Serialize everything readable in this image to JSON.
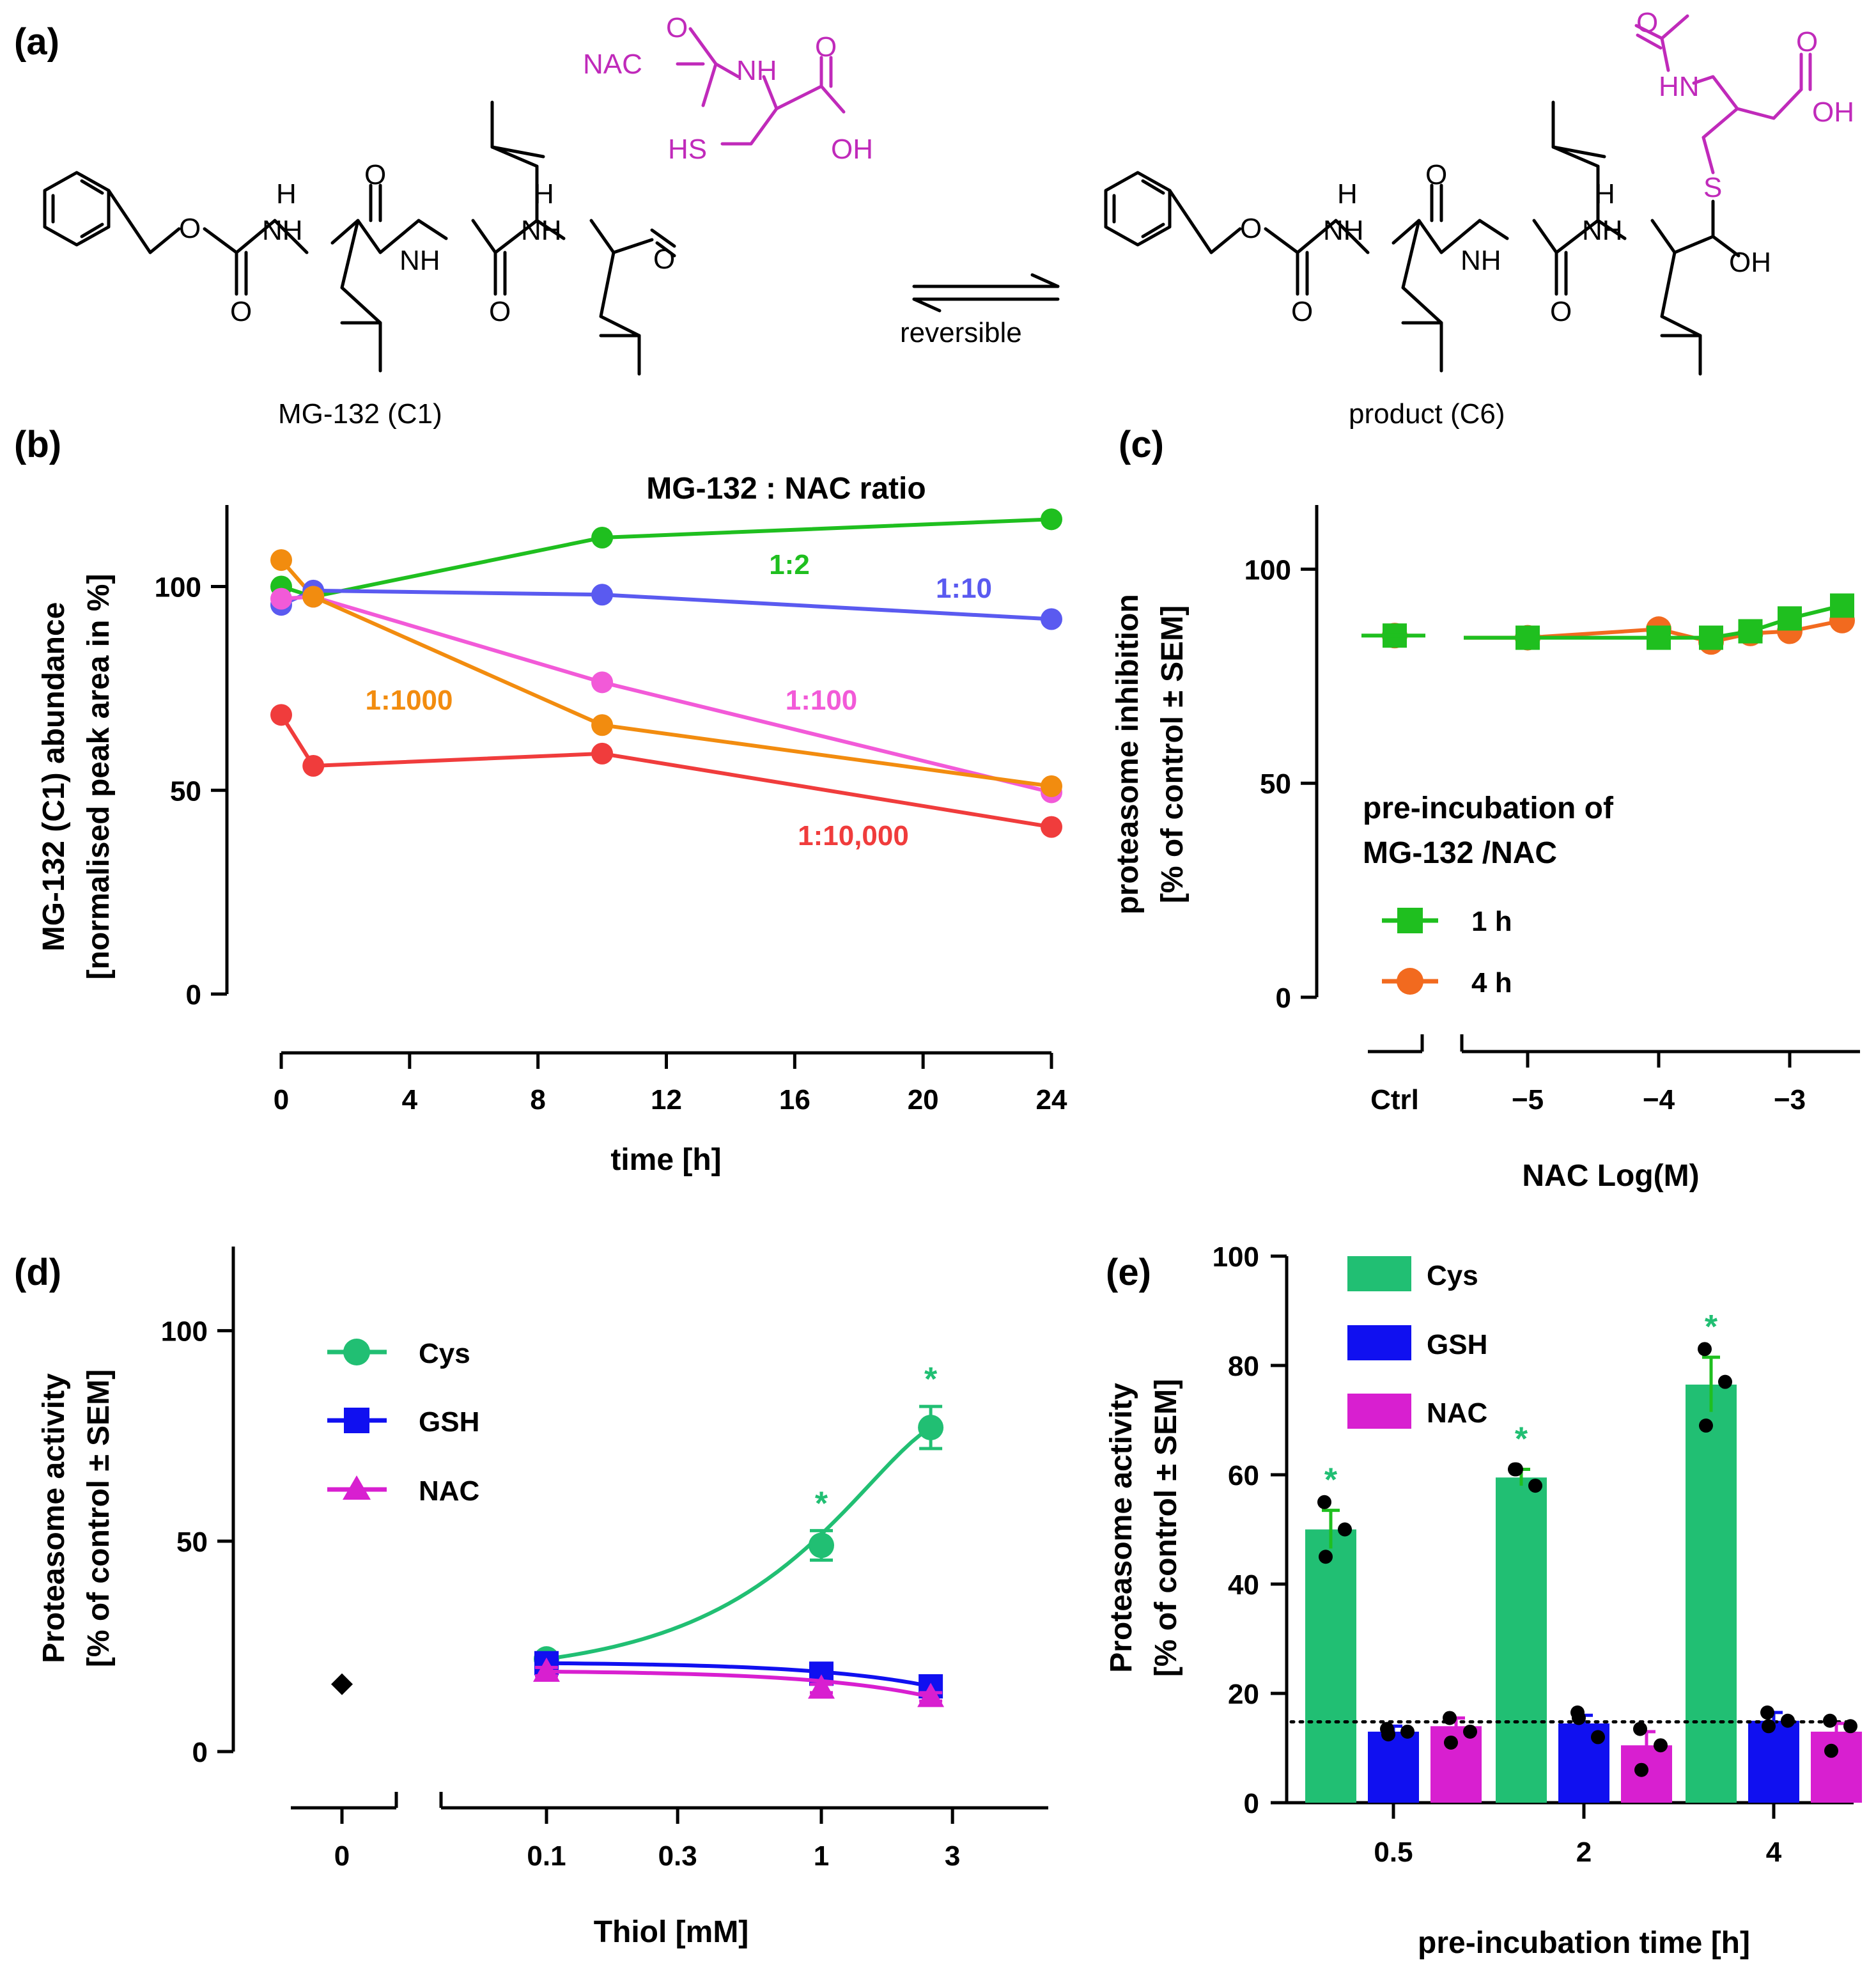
{
  "panels": {
    "a": "(a)",
    "b": "(b)",
    "c": "(c)",
    "d": "(d)",
    "e": "(e)"
  },
  "scheme": {
    "reactant_label": "MG-132 (C1)",
    "product_label": "product (C6)",
    "reagent_label": "NAC",
    "arrow_label": "reversible",
    "atoms": {
      "O": "O",
      "H": "H",
      "NH": "NH",
      "HN": "HN",
      "OH": "OH",
      "HS": "HS",
      "S": "S"
    }
  },
  "colors": {
    "green": "#1fbf1f",
    "blue": "#5a5af0",
    "orange": "#f28c0f",
    "pink": "#f25ad8",
    "red": "#f03c3c",
    "orange4h": "#f26a1f",
    "teal": "#21bf73",
    "navy": "#1010f0",
    "magenta": "#d81fd0",
    "chem_magenta": "#c02aba"
  },
  "chart_data": [
    {
      "panel": "b",
      "type": "line",
      "title": "MG-132 : NAC ratio",
      "xlabel": "time [h]",
      "ylabel": [
        "MG-132 (C1) abundance",
        "[normalised peak area in %]"
      ],
      "xlim": [
        0,
        24
      ],
      "ylim": [
        0,
        120
      ],
      "xticks": [
        0,
        4,
        8,
        12,
        16,
        20,
        24
      ],
      "yticks": [
        0,
        50,
        100
      ],
      "x": [
        0,
        1,
        10,
        24
      ],
      "series": [
        {
          "name": "1:2",
          "color": "#1fbf1f",
          "values": [
            100,
            97.5,
            112,
            116.5
          ]
        },
        {
          "name": "1:10",
          "color": "#5a5af0",
          "values": [
            95.5,
            99,
            98,
            92
          ]
        },
        {
          "name": "1:100",
          "color": "#f25ad8",
          "values": [
            97,
            97.5,
            76.5,
            49.5
          ]
        },
        {
          "name": "1:1000",
          "color": "#f28c0f",
          "values": [
            106.5,
            97.5,
            66,
            51
          ]
        },
        {
          "name": "1:10,000",
          "color": "#f03c3c",
          "values": [
            68.5,
            56,
            59,
            41
          ]
        }
      ]
    },
    {
      "panel": "c",
      "type": "line",
      "xlabel": "NAC Log(M)",
      "ylabel": [
        "proteasome inhibition",
        "[% of control ± SEM]"
      ],
      "ylim": [
        0,
        115
      ],
      "yticks": [
        0,
        50,
        100
      ],
      "xticks": [
        -5,
        -4,
        -3
      ],
      "xtick_labels": [
        "−5",
        "−4",
        "−3"
      ],
      "ctrl_label": "Ctrl",
      "legend_title": [
        "pre-incubation of",
        "MG-132 /NAC"
      ],
      "control": {
        "1 h": 84.5,
        "4 h": 84.5
      },
      "series": [
        {
          "name": "1 h",
          "color": "#1fbf1f",
          "marker": "square",
          "x": [
            -5,
            -4,
            -3.6,
            -3.3,
            -3,
            -2.6
          ],
          "values": [
            84,
            84,
            84,
            85.5,
            88.5,
            91.5
          ]
        },
        {
          "name": "4 h",
          "color": "#f26a1f",
          "marker": "circle",
          "x": [
            -5,
            -4,
            -3.6,
            -3.3,
            -3,
            -2.6
          ],
          "values": [
            84,
            86,
            83,
            85,
            85.5,
            88
          ]
        }
      ]
    },
    {
      "panel": "d",
      "type": "line",
      "xlabel": "Thiol [mM]",
      "ylabel": [
        "Proteasome activity",
        "[% of control ± SEM]"
      ],
      "ylim": [
        0,
        120
      ],
      "yticks": [
        0,
        50,
        100
      ],
      "xticks": [
        0.1,
        0.3,
        1,
        3
      ],
      "xtick_labels": [
        "0.1",
        "0.3",
        "1",
        "3"
      ],
      "zero_label": "0",
      "zero_value": 16,
      "significance": "*",
      "series": [
        {
          "name": "Cys",
          "color": "#21bf73",
          "marker": "circle",
          "x": [
            0.1,
            1,
            2.5
          ],
          "values": [
            22,
            49,
            77
          ],
          "err": [
            1,
            3.5,
            5
          ]
        },
        {
          "name": "GSH",
          "color": "#1010f0",
          "marker": "square",
          "x": [
            0.1,
            1,
            2.5
          ],
          "values": [
            21,
            18.5,
            15.5
          ],
          "err": [
            1,
            1,
            1
          ]
        },
        {
          "name": "NAC",
          "color": "#d81fd0",
          "marker": "triangle",
          "x": [
            0.1,
            1,
            2.5
          ],
          "values": [
            19,
            15,
            13
          ],
          "err": [
            1,
            1,
            1
          ]
        }
      ],
      "significant_points": [
        1,
        2.5
      ]
    },
    {
      "panel": "e",
      "type": "bar",
      "xlabel": "pre-incubation time [h]",
      "ylabel": [
        "Proteasome activity",
        "[% of control ± SEM]"
      ],
      "ylim": [
        0,
        100
      ],
      "yticks": [
        0,
        20,
        40,
        60,
        80,
        100
      ],
      "categories": [
        "0.5",
        "2",
        "4"
      ],
      "baseline": 14.8,
      "significance": "*",
      "series": [
        {
          "name": "Cys",
          "color": "#21bf73",
          "values": [
            50,
            59.5,
            76.5
          ],
          "err": [
            3.5,
            1.5,
            5
          ],
          "points": [
            [
              55,
              50,
              45
            ],
            [
              61,
              58,
              61
            ],
            [
              83,
              77,
              69
            ]
          ]
        },
        {
          "name": "GSH",
          "color": "#1010f0",
          "values": [
            13,
            14.5,
            15
          ],
          "err": [
            1,
            1.5,
            1.5
          ],
          "points": [
            [
              13.5,
              13,
              12.5
            ],
            [
              16.5,
              12,
              15.5
            ],
            [
              16.5,
              15,
              14
            ]
          ]
        },
        {
          "name": "NAC",
          "color": "#d81fd0",
          "values": [
            14,
            10.5,
            13
          ],
          "err": [
            1.5,
            2.5,
            1.5
          ],
          "points": [
            [
              15.5,
              13,
              11
            ],
            [
              13.5,
              10.5,
              6
            ],
            [
              15,
              14,
              9.5
            ]
          ]
        }
      ]
    }
  ]
}
